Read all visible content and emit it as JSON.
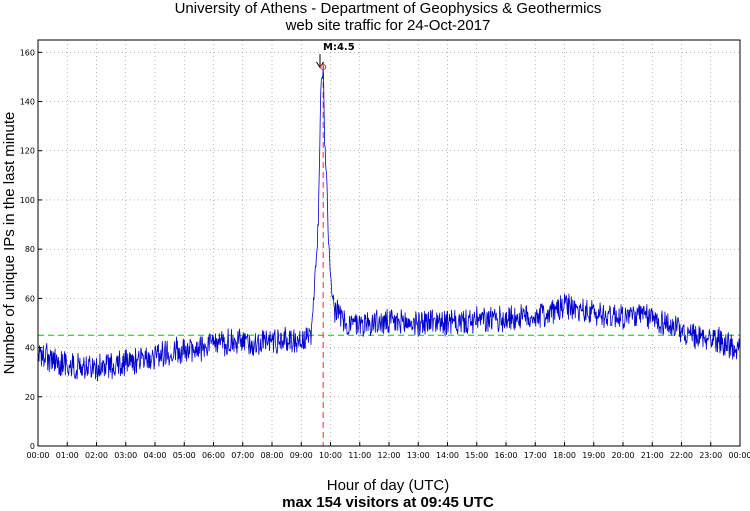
{
  "chart_data": {
    "type": "line",
    "title": "University of Athens - Department of Geophysics & Geothermics",
    "subtitle": "web site traffic for 24-Oct-2017",
    "xlabel": "Hour of day (UTC)",
    "ylabel": "Number of unique IPs in the last minute",
    "footer": "max 154 visitors at 09:45 UTC",
    "xlim": [
      0,
      24
    ],
    "ylim": [
      0,
      165
    ],
    "grid": true,
    "x_tick_labels": [
      "00:00",
      "01:00",
      "02:00",
      "03:00",
      "04:00",
      "05:00",
      "06:00",
      "07:00",
      "08:00",
      "09:00",
      "10:00",
      "11:00",
      "12:00",
      "13:00",
      "14:00",
      "15:00",
      "16:00",
      "17:00",
      "18:00",
      "19:00",
      "20:00",
      "21:00",
      "22:00",
      "23:00",
      "00:00"
    ],
    "y_ticks": [
      0,
      20,
      40,
      60,
      80,
      100,
      120,
      140,
      160
    ],
    "series": [
      {
        "color": "#0000cc",
        "x": [
          "00:00",
          "00:30",
          "01:00",
          "01:30",
          "02:00",
          "02:30",
          "03:00",
          "03:30",
          "04:00",
          "04:30",
          "05:00",
          "05:30",
          "06:00",
          "06:30",
          "07:00",
          "07:30",
          "08:00",
          "08:30",
          "09:00",
          "09:20",
          "09:35",
          "09:40",
          "09:45",
          "09:48",
          "09:52",
          "09:56",
          "10:00",
          "10:05",
          "10:10",
          "10:20",
          "10:30",
          "10:45",
          "11:00",
          "11:30",
          "12:00",
          "12:30",
          "13:00",
          "13:30",
          "14:00",
          "14:30",
          "15:00",
          "15:30",
          "16:00",
          "16:30",
          "17:00",
          "17:30",
          "18:00",
          "18:30",
          "19:00",
          "19:30",
          "20:00",
          "20:30",
          "21:00",
          "21:30",
          "22:00",
          "22:30",
          "23:00",
          "23:30",
          "23:59"
        ],
        "values": [
          37,
          35,
          33,
          32,
          32,
          33,
          34,
          35,
          37,
          38,
          39,
          40,
          41,
          42,
          42,
          42,
          43,
          43,
          43,
          44,
          90,
          145,
          154,
          125,
          110,
          85,
          70,
          60,
          55,
          53,
          50,
          49,
          50,
          50,
          50,
          50,
          50,
          51,
          50,
          50,
          51,
          51,
          52,
          52,
          53,
          54,
          57,
          55,
          54,
          53,
          53,
          53,
          52,
          50,
          46,
          44,
          44,
          42,
          38
        ]
      }
    ],
    "reference_lines": [
      {
        "orientation": "horizontal",
        "value": 45,
        "color": "#00cc00",
        "style": "dashed"
      },
      {
        "orientation": "vertical",
        "value": "09:45",
        "color": "#e53333",
        "style": "dashed"
      }
    ],
    "annotations": [
      {
        "text": "M:4.5",
        "x": "09:45",
        "y": 154
      }
    ]
  }
}
